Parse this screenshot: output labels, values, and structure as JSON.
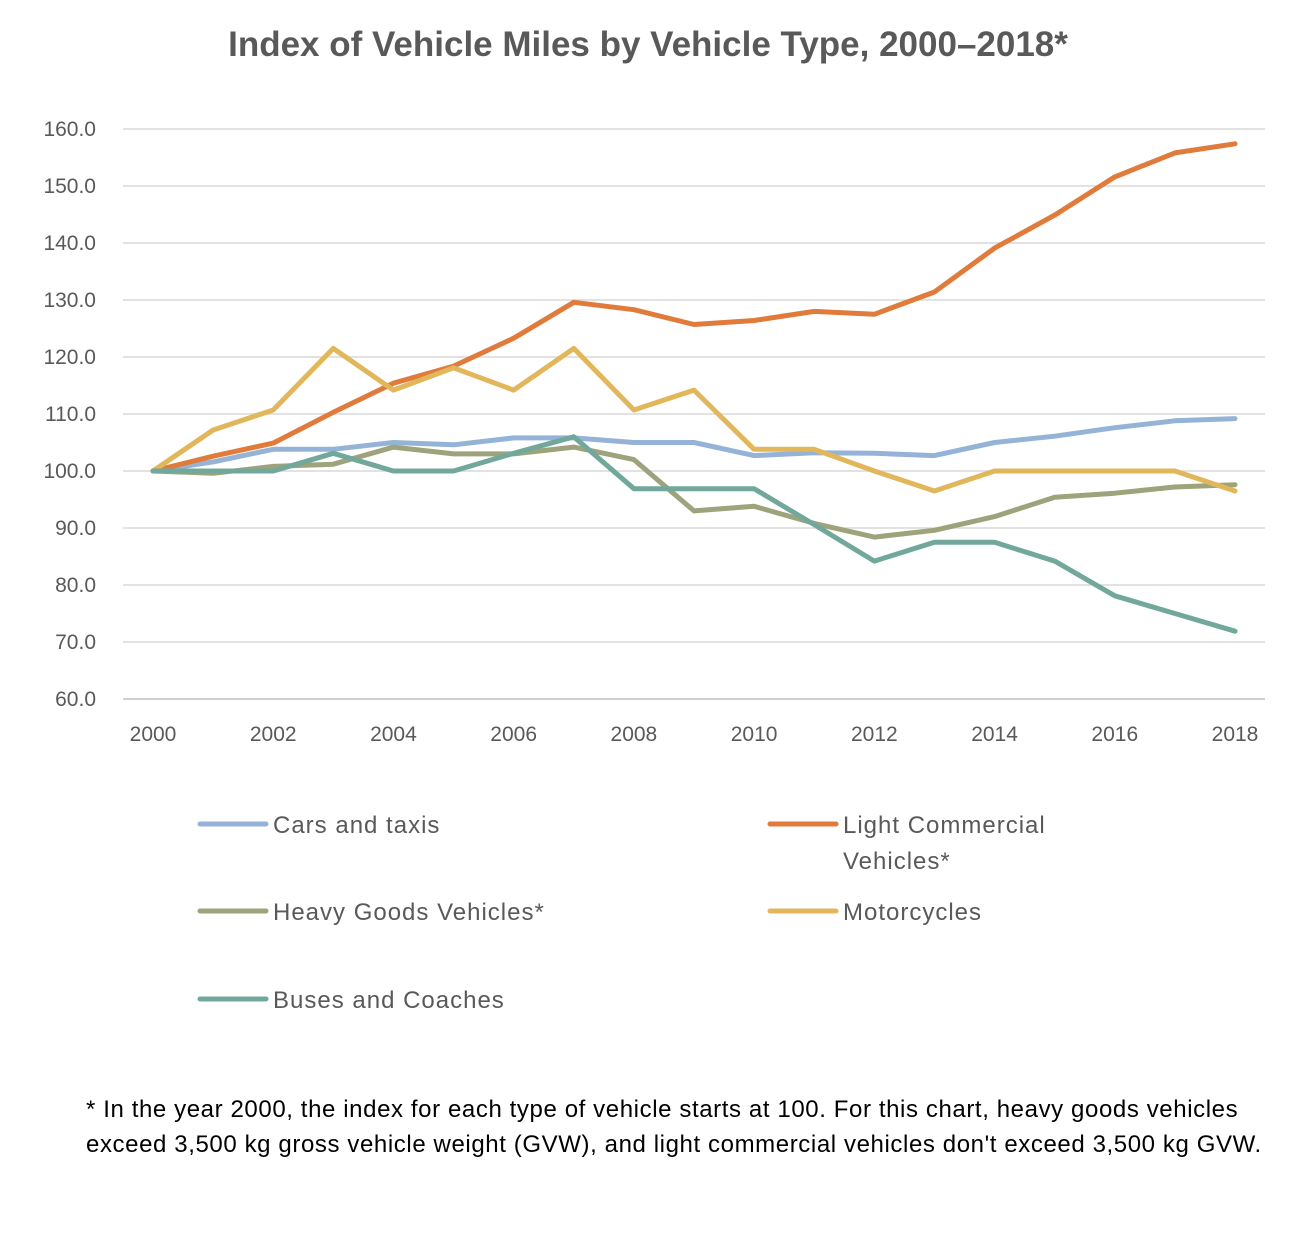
{
  "chart_data": {
    "type": "line",
    "title": "Index of Vehicle Miles by Vehicle Type, 2000–2018*",
    "xlabel": "",
    "ylabel": "",
    "x": [
      2000,
      2001,
      2002,
      2003,
      2004,
      2005,
      2006,
      2007,
      2008,
      2009,
      2010,
      2011,
      2012,
      2013,
      2014,
      2015,
      2016,
      2017,
      2018
    ],
    "xticks": [
      "2000",
      "2002",
      "2004",
      "2006",
      "2008",
      "2010",
      "2012",
      "2014",
      "2016",
      "2018"
    ],
    "yticks": [
      "60.0",
      "70.0",
      "80.0",
      "90.0",
      "100.0",
      "110.0",
      "120.0",
      "130.0",
      "140.0",
      "150.0",
      "160.0"
    ],
    "ylim": [
      60,
      160
    ],
    "grid": "horizontal",
    "legend_placement": "bottom",
    "series": [
      {
        "name": "Cars and taxis",
        "color": "#95b3d7",
        "values": [
          100,
          101.6,
          103.8,
          103.8,
          105,
          104.6,
          105.8,
          105.8,
          105,
          105,
          102.7,
          103.2,
          103.1,
          102.7,
          105,
          106.1,
          107.6,
          108.8,
          109.2
        ]
      },
      {
        "name": "Light Commercial Vehicles*",
        "name_lines": [
          "Light Commercial",
          "Vehicles*"
        ],
        "color": "#e07b3c",
        "values": [
          100,
          102.6,
          104.9,
          110.3,
          115.4,
          118.4,
          123.3,
          129.6,
          128.3,
          125.7,
          126.4,
          128,
          127.5,
          131.4,
          139.1,
          144.9,
          151.6,
          155.8,
          157.4
        ]
      },
      {
        "name": "Heavy Goods Vehicles*",
        "color": "#9ea37c",
        "values": [
          100,
          99.6,
          100.8,
          101.2,
          104.2,
          103,
          103,
          104.2,
          102,
          93,
          93.8,
          90.8,
          88.4,
          89.6,
          92,
          95.4,
          96.1,
          97.2,
          97.6
        ]
      },
      {
        "name": "Motorcycles",
        "color": "#e2b75c",
        "values": [
          100,
          107.2,
          110.7,
          121.5,
          114.2,
          118.1,
          114.2,
          121.5,
          110.7,
          114.2,
          103.8,
          103.8,
          100,
          96.5,
          100,
          100,
          100,
          100,
          96.5
        ]
      },
      {
        "name": "Buses and Coaches",
        "color": "#72a89b",
        "values": [
          100,
          100,
          100,
          103.1,
          100,
          100,
          103.1,
          106,
          96.9,
          96.9,
          96.9,
          90.6,
          84.2,
          87.5,
          87.5,
          84.2,
          78.1,
          75,
          71.9
        ]
      }
    ]
  },
  "footnote": "* In the year 2000, the index for each type of vehicle starts at 100. For this chart, heavy goods vehicles exceed 3,500 kg gross vehicle weight (GVW),  and light commercial vehicles don't exceed 3,500 kg GVW."
}
